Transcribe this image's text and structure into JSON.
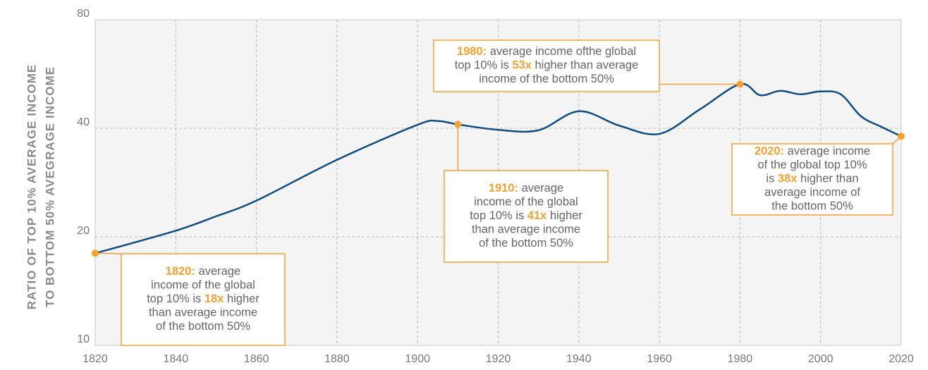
{
  "chart_data": {
    "type": "line",
    "ylabel": [
      "RATIO OF TOP 10% AVERAGE INCOME",
      "TO BOTTOM 50% AVEGRAGE INCOME"
    ],
    "x": [
      1820,
      1840,
      1850,
      1860,
      1880,
      1900,
      1905,
      1910,
      1920,
      1930,
      1940,
      1950,
      1960,
      1970,
      1980,
      1985,
      1990,
      1995,
      2000,
      2005,
      2010,
      2015,
      2020
    ],
    "series": [
      {
        "name": "Top 10% / bottom 50% ratio",
        "color": "#0f4c81",
        "values": [
          18,
          20.8,
          22.8,
          25.2,
          32.7,
          40.9,
          41.9,
          41,
          39.6,
          39.5,
          44.6,
          40.7,
          38.6,
          45.1,
          53,
          49.4,
          50.8,
          49.7,
          50.6,
          49.7,
          43.2,
          40.4,
          38
        ]
      }
    ],
    "xlim": [
      1820,
      2020
    ],
    "xticks": [
      1820,
      1840,
      1860,
      1880,
      1900,
      1920,
      1940,
      1960,
      1980,
      2000,
      2020
    ],
    "ylim": [
      10,
      80
    ],
    "yticks": [
      10,
      20,
      40,
      80
    ],
    "ylog": true,
    "grid": true,
    "annotation_color": "#f5a133",
    "annotations": [
      {
        "x": 1820,
        "lines": [
          [
            {
              "text": "1820:",
              "bold": true
            },
            {
              "text": " average",
              "bold": false
            }
          ],
          [
            {
              "text": "income of the global",
              "bold": false
            }
          ],
          [
            {
              "text": "top 10% is ",
              "bold": false
            },
            {
              "text": "18x",
              "bold": true
            },
            {
              "text": " higher",
              "bold": false
            }
          ],
          [
            {
              "text": "than average income",
              "bold": false
            }
          ],
          [
            {
              "text": "of the bottom 50%",
              "bold": false
            }
          ]
        ]
      },
      {
        "x": 1910,
        "lines": [
          [
            {
              "text": "1910:",
              "bold": true
            },
            {
              "text": " average",
              "bold": false
            }
          ],
          [
            {
              "text": "income of the global",
              "bold": false
            }
          ],
          [
            {
              "text": "top 10% is ",
              "bold": false
            },
            {
              "text": "41x",
              "bold": true
            },
            {
              "text": " higher",
              "bold": false
            }
          ],
          [
            {
              "text": "than average income",
              "bold": false
            }
          ],
          [
            {
              "text": "of the bottom 50%",
              "bold": false
            }
          ]
        ]
      },
      {
        "x": 1980,
        "lines": [
          [
            {
              "text": "1980:",
              "bold": true
            },
            {
              "text": " average income ofthe global",
              "bold": false
            }
          ],
          [
            {
              "text": "top 10% is ",
              "bold": false
            },
            {
              "text": "53x",
              "bold": true
            },
            {
              "text": " higher than average",
              "bold": false
            }
          ],
          [
            {
              "text": "income of the bottom 50%",
              "bold": false
            }
          ]
        ]
      },
      {
        "x": 2020,
        "lines": [
          [
            {
              "text": "2020:",
              "bold": true
            },
            {
              "text": " average income",
              "bold": false
            }
          ],
          [
            {
              "text": "of the global top 10%",
              "bold": false
            }
          ],
          [
            {
              "text": "is ",
              "bold": false
            },
            {
              "text": "38x",
              "bold": true
            },
            {
              "text": " higher than",
              "bold": false
            }
          ],
          [
            {
              "text": "average income of",
              "bold": false
            }
          ],
          [
            {
              "text": "the bottom 50%",
              "bold": false
            }
          ]
        ]
      }
    ]
  }
}
